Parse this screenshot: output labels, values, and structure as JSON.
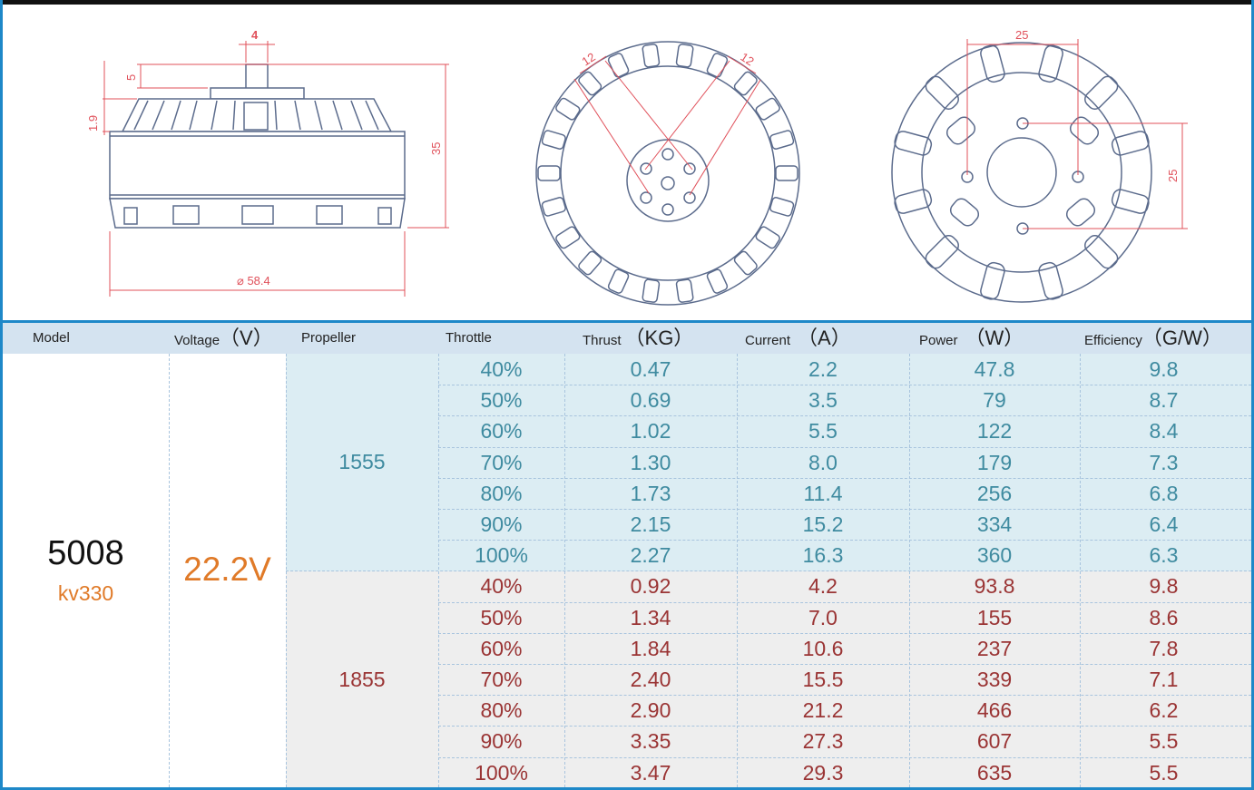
{
  "drawing": {
    "side_view": {
      "dim_shaft": "4",
      "dim_top": "5",
      "dim_left": "1.9",
      "dim_height": "35",
      "dim_diameter": "⌀ 58.4"
    },
    "bottom_view": {
      "dim_left": "12",
      "dim_right": "12"
    },
    "top_view": {
      "dim_width": "25",
      "dim_height": "25"
    }
  },
  "table": {
    "headers": {
      "model": "Model",
      "voltage": "Voltage",
      "voltage_unit": "（V）",
      "propeller": "Propeller",
      "throttle": "Throttle",
      "thrust": "Thrust",
      "thrust_unit": "（KG）",
      "current": "Current",
      "current_unit": "（A）",
      "power": "Power",
      "power_unit": "（W）",
      "efficiency": "Efficiency",
      "efficiency_unit": "（G/W）"
    },
    "model_name": "5008",
    "model_kv": "kv330",
    "voltage_value": "22.2V",
    "groups": [
      {
        "propeller": "1555",
        "rows": [
          {
            "throttle": "40%",
            "thrust": "0.47",
            "current": "2.2",
            "power": "47.8",
            "efficiency": "9.8"
          },
          {
            "throttle": "50%",
            "thrust": "0.69",
            "current": "3.5",
            "power": "79",
            "efficiency": "8.7"
          },
          {
            "throttle": "60%",
            "thrust": "1.02",
            "current": "5.5",
            "power": "122",
            "efficiency": "8.4"
          },
          {
            "throttle": "70%",
            "thrust": "1.30",
            "current": "8.0",
            "power": "179",
            "efficiency": "7.3"
          },
          {
            "throttle": "80%",
            "thrust": "1.73",
            "current": "11.4",
            "power": "256",
            "efficiency": "6.8"
          },
          {
            "throttle": "90%",
            "thrust": "2.15",
            "current": "15.2",
            "power": "334",
            "efficiency": "6.4"
          },
          {
            "throttle": "100%",
            "thrust": "2.27",
            "current": "16.3",
            "power": "360",
            "efficiency": "6.3"
          }
        ]
      },
      {
        "propeller": "1855",
        "rows": [
          {
            "throttle": "40%",
            "thrust": "0.92",
            "current": "4.2",
            "power": "93.8",
            "efficiency": "9.8"
          },
          {
            "throttle": "50%",
            "thrust": "1.34",
            "current": "7.0",
            "power": "155",
            "efficiency": "8.6"
          },
          {
            "throttle": "60%",
            "thrust": "1.84",
            "current": "10.6",
            "power": "237",
            "efficiency": "7.8"
          },
          {
            "throttle": "70%",
            "thrust": "2.40",
            "current": "15.5",
            "power": "339",
            "efficiency": "7.1"
          },
          {
            "throttle": "80%",
            "thrust": "2.90",
            "current": "21.2",
            "power": "466",
            "efficiency": "6.2"
          },
          {
            "throttle": "90%",
            "thrust": "3.35",
            "current": "27.3",
            "power": "607",
            "efficiency": "5.5"
          },
          {
            "throttle": "100%",
            "thrust": "3.47",
            "current": "29.3",
            "power": "635",
            "efficiency": "5.5"
          }
        ]
      }
    ]
  },
  "colors": {
    "border_blue": "#1e88c8",
    "header_bg": "#d4e3f0",
    "group1_bg": "#dcedf3",
    "group2_bg": "#eeeeee",
    "group1_text": "#3f8ba0",
    "group2_text": "#9a3434",
    "model_kv": "#e07a28",
    "voltage_value": "#e07a28",
    "dimension_lines": "#e0505a"
  }
}
